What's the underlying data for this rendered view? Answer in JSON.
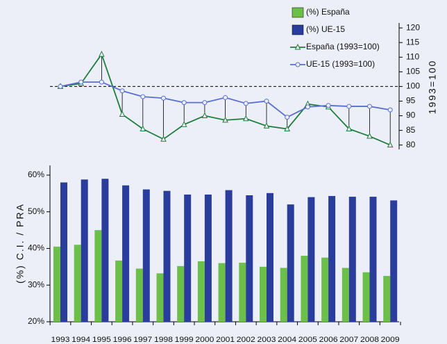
{
  "chart_data": {
    "type": "bar",
    "categories": [
      "1993",
      "1994",
      "1995",
      "1996",
      "1997",
      "1998",
      "1999",
      "2000",
      "2001",
      "2002",
      "2003",
      "2004",
      "2005",
      "2006",
      "2007",
      "2008",
      "2009"
    ],
    "series": [
      {
        "name": "(%) España",
        "type": "bar",
        "color": "#6cc04a",
        "values": [
          40.5,
          41,
          45,
          36.7,
          34.5,
          33.2,
          35.2,
          36.5,
          36,
          36.1,
          35,
          34.7,
          38,
          37.5,
          34.7,
          33.5,
          32.5
        ]
      },
      {
        "name": "(%) UE-15",
        "type": "bar",
        "color": "#2a3d9c",
        "values": [
          58,
          58.8,
          59,
          57.2,
          56.1,
          55.7,
          54.7,
          54.7,
          55.9,
          54.5,
          55.1,
          52,
          54,
          54.3,
          54.1,
          54.1,
          53.1
        ]
      },
      {
        "name": "España (1993=100)",
        "type": "line",
        "axis": "y2",
        "color": "#1f7d3c",
        "marker": "triangle",
        "values": [
          100,
          101,
          111,
          90.5,
          85.5,
          82,
          87,
          90,
          88.5,
          89,
          86.5,
          85.5,
          94,
          93,
          85.5,
          83,
          80
        ]
      },
      {
        "name": "UE-15 (1993=100)",
        "type": "line",
        "axis": "y2",
        "color": "#5a6fd0",
        "marker": "circle",
        "values": [
          100,
          101.5,
          101.5,
          98.5,
          96.5,
          96,
          94.5,
          94.5,
          96.2,
          94.2,
          95,
          89.5,
          93,
          93.5,
          93.2,
          93.2,
          92
        ]
      }
    ],
    "ylabel": "(%) C.I. / PRA",
    "y2label": "1993=100",
    "ylim": [
      20,
      62.65
    ],
    "yticks": [
      {
        "value": 20,
        "label": "20%"
      },
      {
        "value": 30,
        "label": "30%"
      },
      {
        "value": 40,
        "label": "40%"
      },
      {
        "value": 50,
        "label": "50%"
      },
      {
        "value": 60,
        "label": "60%"
      }
    ],
    "y2lim": [
      78.5,
      121.7
    ],
    "y2ticks": [
      80,
      85,
      90,
      95,
      100,
      105,
      110,
      115,
      120
    ],
    "reference_line": 100,
    "legend": "top-right"
  }
}
